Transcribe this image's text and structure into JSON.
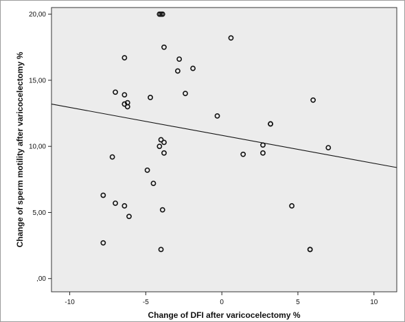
{
  "chart_data": {
    "type": "scatter",
    "title": "",
    "xlabel": "Change of DFI after varicocelectomy %",
    "ylabel": "Change of sperm motility after varicocelectomy %",
    "xlim": [
      -11.2,
      11.5
    ],
    "ylim": [
      -1.0,
      20.5
    ],
    "x_ticks": [
      -10,
      -5,
      0,
      5,
      10
    ],
    "x_tick_labels": [
      "-10",
      "-5",
      "0",
      "5",
      "10"
    ],
    "y_ticks": [
      0,
      5,
      10,
      15,
      20
    ],
    "y_tick_labels": [
      ",00",
      "5,00",
      "10,00",
      "15,00",
      "20,00"
    ],
    "grid": false,
    "legend": "none",
    "points": [
      {
        "x": -4.1,
        "y": 20.0
      },
      {
        "x": -4.0,
        "y": 20.0
      },
      {
        "x": -3.9,
        "y": 20.0
      },
      {
        "x": 0.6,
        "y": 18.2
      },
      {
        "x": -3.8,
        "y": 17.5
      },
      {
        "x": -6.4,
        "y": 16.7
      },
      {
        "x": -2.8,
        "y": 16.6
      },
      {
        "x": -2.9,
        "y": 15.7
      },
      {
        "x": -1.9,
        "y": 15.9
      },
      {
        "x": -7.0,
        "y": 14.1
      },
      {
        "x": -6.4,
        "y": 13.9
      },
      {
        "x": -4.7,
        "y": 13.7
      },
      {
        "x": -2.4,
        "y": 14.0
      },
      {
        "x": 6.0,
        "y": 13.5
      },
      {
        "x": -6.4,
        "y": 13.2
      },
      {
        "x": -6.2,
        "y": 13.0
      },
      {
        "x": -6.2,
        "y": 13.3
      },
      {
        "x": -0.3,
        "y": 12.3
      },
      {
        "x": 3.2,
        "y": 11.7
      },
      {
        "x": 3.2,
        "y": 11.7
      },
      {
        "x": -4.0,
        "y": 10.5
      },
      {
        "x": -3.8,
        "y": 10.3
      },
      {
        "x": -4.1,
        "y": 10.0
      },
      {
        "x": 2.7,
        "y": 10.1
      },
      {
        "x": 7.0,
        "y": 9.9
      },
      {
        "x": -3.8,
        "y": 9.5
      },
      {
        "x": 1.4,
        "y": 9.4
      },
      {
        "x": 2.7,
        "y": 9.5
      },
      {
        "x": -7.2,
        "y": 9.2
      },
      {
        "x": -4.9,
        "y": 8.2
      },
      {
        "x": -4.5,
        "y": 7.2
      },
      {
        "x": -7.8,
        "y": 6.3
      },
      {
        "x": -7.0,
        "y": 5.7
      },
      {
        "x": -6.4,
        "y": 5.5
      },
      {
        "x": 4.6,
        "y": 5.5
      },
      {
        "x": -3.9,
        "y": 5.2
      },
      {
        "x": -6.1,
        "y": 4.7
      },
      {
        "x": -7.8,
        "y": 2.7
      },
      {
        "x": -4.0,
        "y": 2.2
      },
      {
        "x": 5.8,
        "y": 2.2
      },
      {
        "x": 5.8,
        "y": 2.2
      }
    ],
    "fit_line": {
      "x": [
        -11.2,
        11.5
      ],
      "y": [
        13.2,
        8.4
      ]
    }
  }
}
